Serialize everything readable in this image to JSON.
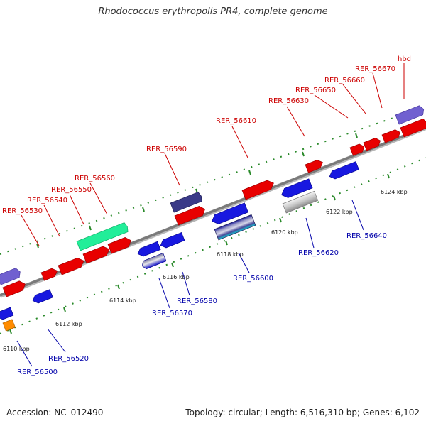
{
  "title": "Rhodococcus erythropolis PR4, complete genome",
  "footer": {
    "accession": "Accession: NC_012490",
    "topology": "Topology: circular; Length: 6,516,310 bp; Genes: 6,102"
  },
  "colors": {
    "forward_label": "#cc0000",
    "reverse_label": "#0000aa",
    "backbone": "#7a7a7a",
    "dots": "#2a8a2a"
  },
  "ticks": [
    "6110 kbp",
    "6112 kbp",
    "6114 kbp",
    "6116 kbp",
    "6118 kbp",
    "6120 kbp",
    "6122 kbp",
    "6124 kbp"
  ],
  "forward_labels": [
    "RER_56530",
    "RER_56540",
    "RER_56550",
    "RER_56560",
    "RER_56590",
    "RER_56610",
    "RER_56630",
    "RER_56650",
    "RER_56660",
    "RER_56670",
    "hbd"
  ],
  "reverse_labels": [
    "RER_56500",
    "RER_56520",
    "RER_56570",
    "RER_56580",
    "RER_56600",
    "RER_56620",
    "RER_56640"
  ]
}
